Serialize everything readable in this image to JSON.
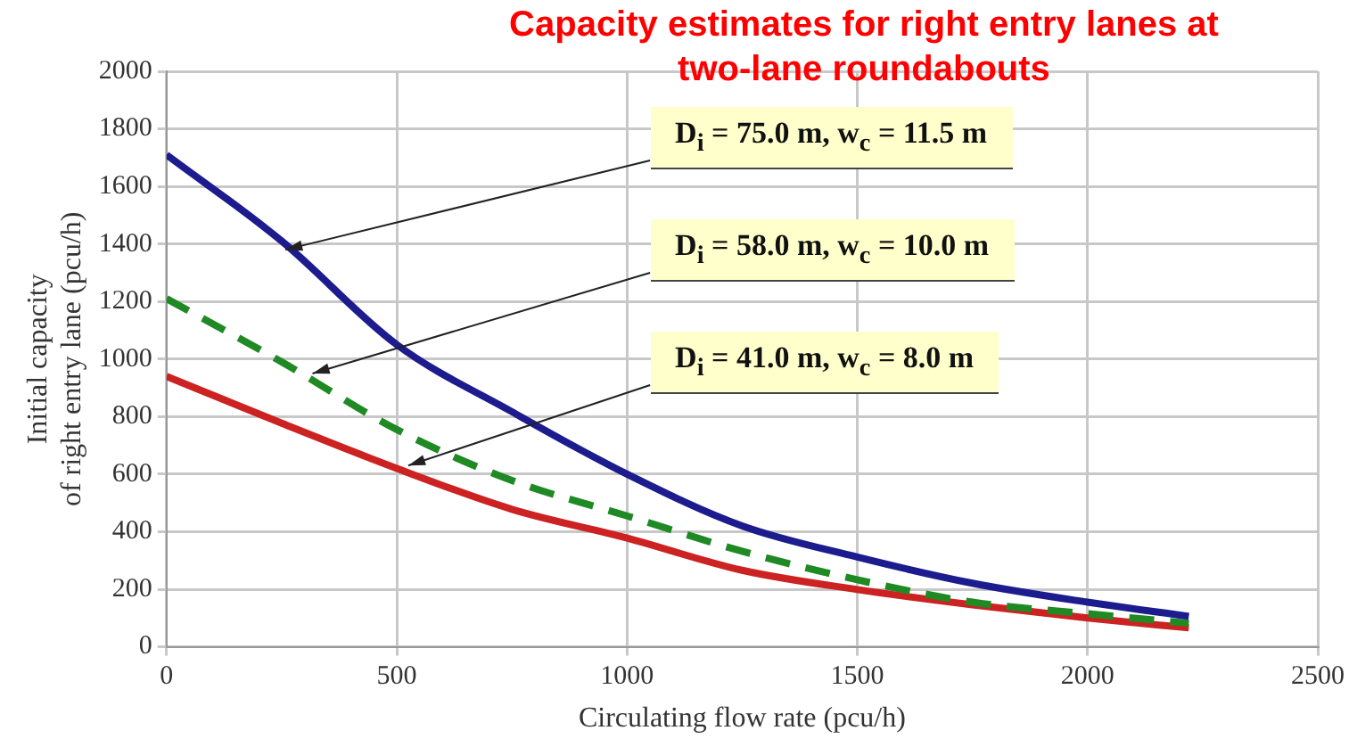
{
  "chart_data": {
    "type": "line",
    "title": "Capacity estimates for right entry lanes at two-lane roundabouts",
    "xlabel": "Circulating flow rate (pcu/h)",
    "ylabel": "Initial capacity\nof right entry lane (pcu/h)",
    "x": [
      0,
      250,
      500,
      750,
      1000,
      1250,
      1500,
      1750,
      2000,
      2220
    ],
    "series": [
      {
        "color": "#1c1c8e",
        "line_style": "solid",
        "values": [
          1710,
          1410,
          1050,
          817,
          600,
          420,
          312,
          221,
          155,
          106
        ]
      },
      {
        "color": "#1f8a24",
        "line_style": "dashed",
        "values": [
          1210,
          990,
          755,
          578,
          455,
          332,
          233,
          155,
          115,
          82
        ]
      },
      {
        "color": "#cc2222",
        "line_style": "solid",
        "values": [
          940,
          777,
          620,
          478,
          378,
          266,
          199,
          146,
          100,
          66
        ]
      }
    ],
    "xlim": [
      0,
      2500
    ],
    "xticks": [
      0,
      500,
      1000,
      1500,
      2000,
      2500
    ],
    "ylim": [
      0,
      2000
    ],
    "yticks": [
      0,
      200,
      400,
      600,
      800,
      1000,
      1200,
      1400,
      1600,
      1800,
      2000
    ],
    "annotations": [
      {
        "text": "D$_{i}$ = 75.0 m, w$_{c}$ = 11.5 m",
        "x": 258,
        "y": 1380
      },
      {
        "text": "D$_{i}$ = 58.0 m, w$_{c}$ = 10.0 m",
        "x": 317,
        "y": 950
      },
      {
        "text": "D$_{i}$ = 41.0 m, w$_{c}$ = 8.0 m",
        "x": 525,
        "y": 630
      }
    ],
    "grid": true,
    "legend": false,
    "marker": "none"
  }
}
